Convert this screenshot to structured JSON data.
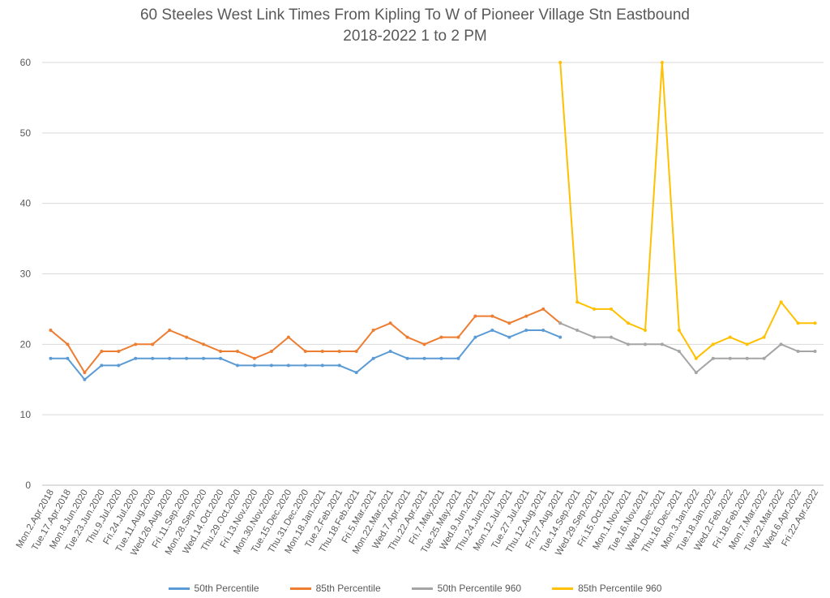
{
  "chart_data": {
    "type": "line",
    "title": "60 Steeles West Link Times From Kipling To W of Pioneer Village Stn Eastbound",
    "subtitle": "2018-2022 1 to 2 PM",
    "ylim": [
      0,
      60
    ],
    "yticks": [
      0,
      10,
      20,
      30,
      40,
      50,
      60
    ],
    "grid": true,
    "legend_position": "bottom",
    "x_tick_labels": [
      "Mon.2.Apr.2018",
      "Tue.17.Apr.2018",
      "Mon.8.Jun.2020",
      "Tue.23.Jun.2020",
      "Thu.9.Jul.2020",
      "Fri.24.Jul.2020",
      "Tue.11.Aug.2020",
      "Wed.26.Aug.2020",
      "Fri.11.Sep.2020",
      "Mon.28.Sep.2020",
      "Wed.14.Oct.2020",
      "Thu.29.Oct.2020",
      "Fri.13.Nov.2020",
      "Mon.30.Nov.2020",
      "Tue.15.Dec.2020",
      "Thu.31.Dec.2020",
      "Mon.18.Jan.2021",
      "Tue.2.Feb.2021",
      "Thu.18.Feb.2021",
      "Fri.5.Mar.2021",
      "Mon.22.Mar.2021",
      "Wed.7.Apr.2021",
      "Thu.22.Apr.2021",
      "Fri.7.May.2021",
      "Tue.25.May.2021",
      "Wed.9.Jun.2021",
      "Thu.24.Jun.2021",
      "Mon.12.Jul.2021",
      "Tue.27.Jul.2021",
      "Thu.12.Aug.2021",
      "Fri.27.Aug.2021",
      "Tue.14.Sep.2021",
      "Wed.29.Sep.2021",
      "Fri.15.Oct.2021",
      "Mon.1.Nov.2021",
      "Tue.16.Nov.2021",
      "Wed.1.Dec.2021",
      "Thu.16.Dec.2021",
      "Mon.3.Jan.2022",
      "Tue.18.Jan.2022",
      "Wed.2.Feb.2022",
      "Fri.18.Feb.2022",
      "Mon.7.Mar.2022",
      "Tue.22.Mar.2022",
      "Wed.6.Apr.2022",
      "Fri.22.Apr.2022"
    ],
    "series": [
      {
        "name": "50th Percentile",
        "color": "#5B9BD5",
        "x": [
          "Mon.2.Apr.2018",
          "Tue.17.Apr.2018",
          "Mon.8.Jun.2020",
          "Tue.23.Jun.2020",
          "Thu.9.Jul.2020",
          "Fri.24.Jul.2020",
          "Tue.11.Aug.2020",
          "Wed.26.Aug.2020",
          "Fri.11.Sep.2020",
          "Mon.28.Sep.2020",
          "Wed.14.Oct.2020",
          "Thu.29.Oct.2020",
          "Fri.13.Nov.2020",
          "Mon.30.Nov.2020",
          "Tue.15.Dec.2020",
          "Thu.31.Dec.2020",
          "Mon.18.Jan.2021",
          "Tue.2.Feb.2021",
          "Thu.18.Feb.2021",
          "Fri.5.Mar.2021",
          "Mon.22.Mar.2021",
          "Wed.7.Apr.2021",
          "Thu.22.Apr.2021",
          "Fri.7.May.2021",
          "Tue.25.May.2021",
          "Wed.9.Jun.2021",
          "Thu.24.Jun.2021",
          "Mon.12.Jul.2021",
          "Tue.27.Jul.2021",
          "Thu.12.Aug.2021",
          "Fri.27.Aug.2021"
        ],
        "values": [
          18,
          18,
          15,
          17,
          17,
          18,
          18,
          18,
          18,
          18,
          18,
          17,
          17,
          17,
          17,
          17,
          17,
          17,
          16,
          18,
          19,
          18,
          18,
          18,
          18,
          21,
          22,
          21,
          22,
          22,
          21
        ]
      },
      {
        "name": "85th Percentile",
        "color": "#ED7D31",
        "x": [
          "Mon.2.Apr.2018",
          "Tue.17.Apr.2018",
          "Mon.8.Jun.2020",
          "Tue.23.Jun.2020",
          "Thu.9.Jul.2020",
          "Fri.24.Jul.2020",
          "Tue.11.Aug.2020",
          "Wed.26.Aug.2020",
          "Fri.11.Sep.2020",
          "Mon.28.Sep.2020",
          "Wed.14.Oct.2020",
          "Thu.29.Oct.2020",
          "Fri.13.Nov.2020",
          "Mon.30.Nov.2020",
          "Tue.15.Dec.2020",
          "Thu.31.Dec.2020",
          "Mon.18.Jan.2021",
          "Tue.2.Feb.2021",
          "Thu.18.Feb.2021",
          "Fri.5.Mar.2021",
          "Mon.22.Mar.2021",
          "Wed.7.Apr.2021",
          "Thu.22.Apr.2021",
          "Fri.7.May.2021",
          "Tue.25.May.2021",
          "Wed.9.Jun.2021",
          "Thu.24.Jun.2021",
          "Mon.12.Jul.2021",
          "Tue.27.Jul.2021",
          "Thu.12.Aug.2021",
          "Fri.27.Aug.2021"
        ],
        "values": [
          22,
          20,
          16,
          19,
          19,
          20,
          20,
          22,
          21,
          20,
          19,
          19,
          18,
          19,
          21,
          19,
          19,
          19,
          19,
          22,
          23,
          21,
          20,
          21,
          21,
          24,
          24,
          23,
          24,
          25,
          23
        ]
      },
      {
        "name": "50th Percentile 960",
        "color": "#A5A5A5",
        "x": [
          "Fri.27.Aug.2021",
          "Tue.14.Sep.2021",
          "Wed.29.Sep.2021",
          "Fri.15.Oct.2021",
          "Mon.1.Nov.2021",
          "Tue.16.Nov.2021",
          "Wed.1.Dec.2021",
          "Thu.16.Dec.2021",
          "Mon.3.Jan.2022",
          "Tue.18.Jan.2022",
          "Wed.2.Feb.2022",
          "Fri.18.Feb.2022",
          "Mon.7.Mar.2022",
          "Tue.22.Mar.2022",
          "Wed.6.Apr.2022",
          "Fri.22.Apr.2022"
        ],
        "values": [
          23,
          22,
          21,
          21,
          20,
          20,
          20,
          19,
          16,
          18,
          18,
          18,
          18,
          20,
          19,
          19
        ]
      },
      {
        "name": "85th Percentile 960",
        "color": "#FFC000",
        "x": [
          "Fri.27.Aug.2021",
          "Tue.14.Sep.2021",
          "Wed.29.Sep.2021",
          "Fri.15.Oct.2021",
          "Mon.1.Nov.2021",
          "Tue.16.Nov.2021",
          "Wed.1.Dec.2021",
          "Thu.16.Dec.2021",
          "Mon.3.Jan.2022",
          "Tue.18.Jan.2022",
          "Wed.2.Feb.2022",
          "Fri.18.Feb.2022",
          "Mon.7.Mar.2022",
          "Tue.22.Mar.2022",
          "Wed.6.Apr.2022",
          "Fri.22.Apr.2022"
        ],
        "values": [
          60,
          26,
          25,
          25,
          23,
          22,
          60,
          22,
          18,
          20,
          21,
          20,
          21,
          26,
          23,
          23
        ]
      }
    ]
  }
}
